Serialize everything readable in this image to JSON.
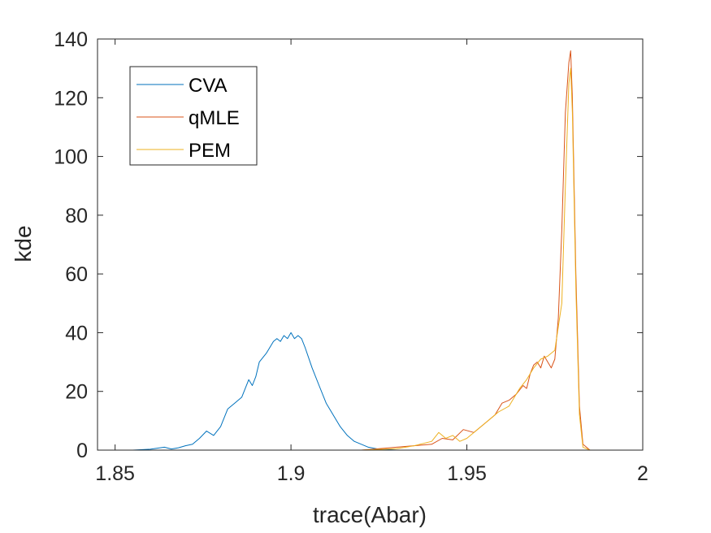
{
  "chart_data": {
    "type": "line",
    "title": "",
    "xlabel": "trace(Abar)",
    "ylabel": "kde",
    "xlim": [
      1.845,
      2.0
    ],
    "ylim": [
      0,
      140
    ],
    "xticks": [
      1.85,
      1.9,
      1.95,
      2.0
    ],
    "xtick_labels": [
      "1.85",
      "1.9",
      "1.95",
      "2"
    ],
    "yticks": [
      0,
      20,
      40,
      60,
      80,
      100,
      120,
      140
    ],
    "ytick_labels": [
      "0",
      "20",
      "40",
      "60",
      "80",
      "100",
      "120",
      "140"
    ],
    "grid": false,
    "legend_position": "top-left",
    "series": [
      {
        "name": "CVA",
        "color": "#0072BD",
        "x": [
          1.845,
          1.855,
          1.86,
          1.864,
          1.866,
          1.868,
          1.87,
          1.872,
          1.874,
          1.876,
          1.878,
          1.88,
          1.882,
          1.884,
          1.886,
          1.888,
          1.889,
          1.89,
          1.891,
          1.893,
          1.895,
          1.896,
          1.897,
          1.898,
          1.899,
          1.9,
          1.901,
          1.902,
          1.903,
          1.904,
          1.906,
          1.908,
          1.91,
          1.912,
          1.914,
          1.916,
          1.918,
          1.92,
          1.922,
          1.925,
          1.93,
          1.94
        ],
        "values": [
          0,
          0,
          0.3,
          1,
          0.4,
          0.8,
          1.5,
          2,
          4,
          6.5,
          5,
          8,
          14,
          16,
          18,
          24,
          22,
          25,
          30,
          33,
          37,
          38,
          37,
          39,
          38,
          40,
          38,
          39,
          38,
          35,
          28,
          22,
          16,
          12,
          8,
          5,
          3,
          2,
          1,
          0.3,
          0,
          0
        ]
      },
      {
        "name": "qMLE",
        "color": "#D95319",
        "x": [
          1.9,
          1.92,
          1.925,
          1.93,
          1.935,
          1.94,
          1.943,
          1.946,
          1.949,
          1.952,
          1.955,
          1.958,
          1.96,
          1.962,
          1.964,
          1.966,
          1.967,
          1.968,
          1.969,
          1.97,
          1.971,
          1.972,
          1.973,
          1.974,
          1.975,
          1.976,
          1.977,
          1.978,
          1.979,
          1.9795,
          1.98,
          1.981,
          1.982,
          1.983,
          1.985,
          1.99,
          1.995
        ],
        "values": [
          0,
          0,
          0.5,
          1,
          1.5,
          2,
          4,
          3.5,
          7,
          6,
          9,
          12,
          16,
          17,
          19,
          22,
          21,
          26,
          29,
          30,
          28,
          32,
          30,
          28,
          31,
          45,
          75,
          115,
          132,
          136,
          120,
          60,
          15,
          2,
          0,
          0,
          0
        ]
      },
      {
        "name": "PEM",
        "color": "#EDB120",
        "x": [
          1.9,
          1.92,
          1.93,
          1.935,
          1.94,
          1.942,
          1.944,
          1.946,
          1.948,
          1.95,
          1.953,
          1.956,
          1.959,
          1.962,
          1.965,
          1.967,
          1.969,
          1.971,
          1.973,
          1.975,
          1.977,
          1.978,
          1.979,
          1.9795,
          1.98,
          1.981,
          1.982,
          1.983,
          1.985,
          1.99,
          1.995
        ],
        "values": [
          0,
          0,
          0.5,
          1.5,
          3,
          6,
          4,
          5,
          3,
          4,
          7,
          10,
          13,
          15,
          21,
          24,
          28,
          31,
          32,
          34,
          50,
          90,
          125,
          130,
          115,
          55,
          12,
          1,
          0,
          0,
          0
        ]
      }
    ]
  }
}
